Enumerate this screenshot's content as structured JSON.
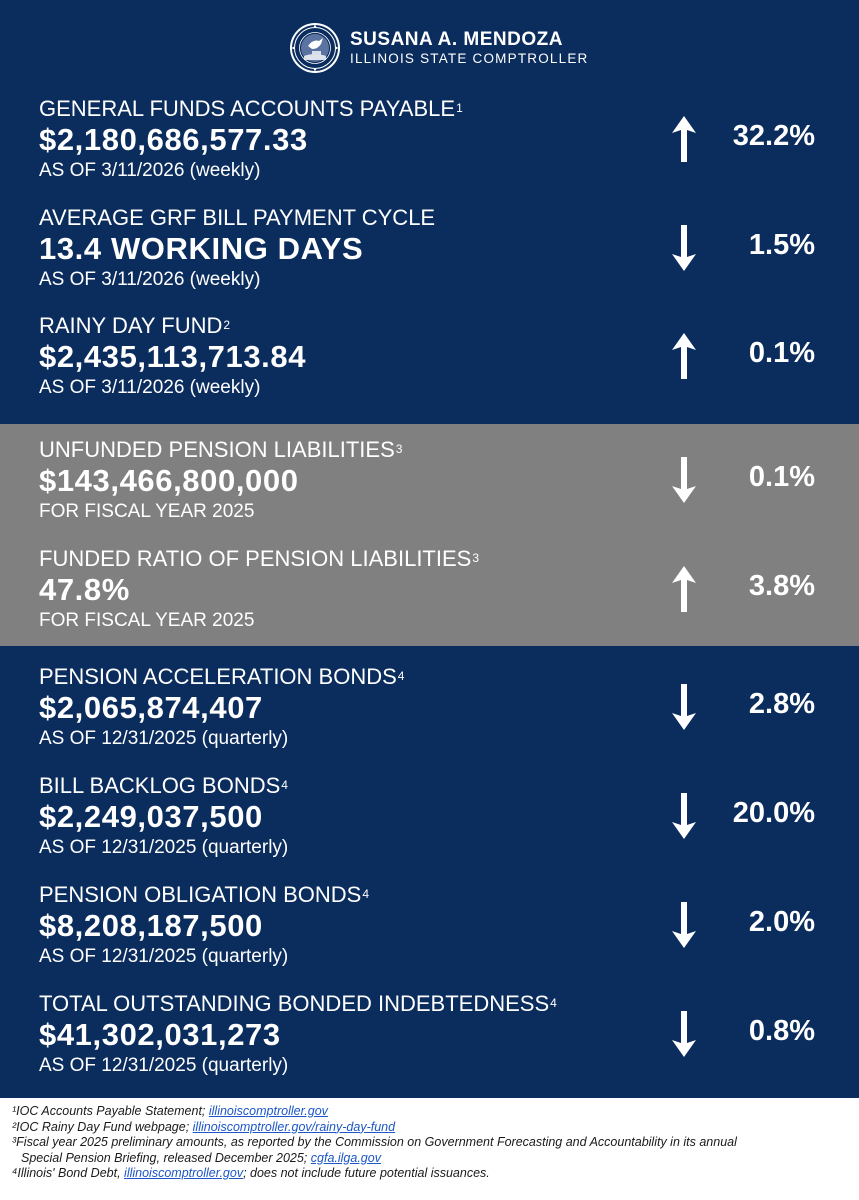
{
  "header": {
    "name": "SUSANA A. MENDOZA",
    "title": "ILLINOIS STATE COMPTROLLER"
  },
  "metrics": [
    {
      "label": "GENERAL FUNDS ACCOUNTS PAYABLE",
      "footnote": "1",
      "value": "$2,180,686,577.33",
      "as_of": "AS OF 3/11/2026 (weekly)",
      "direction": "up",
      "change": "32.2%"
    },
    {
      "label": "AVERAGE GRF BILL PAYMENT CYCLE",
      "footnote": "",
      "value": "13.4 WORKING DAYS",
      "as_of": "AS OF 3/11/2026 (weekly)",
      "direction": "down",
      "change": "1.5%"
    },
    {
      "label": "RAINY DAY FUND",
      "footnote": "2",
      "value": "$2,435,113,713.84",
      "as_of": "AS OF 3/11/2026 (weekly)",
      "direction": "up",
      "change": "0.1%"
    },
    {
      "label": "UNFUNDED PENSION LIABILITIES",
      "footnote": "3",
      "value": "$143,466,800,000",
      "as_of": "FOR FISCAL YEAR 2025",
      "direction": "down",
      "change": "0.1%"
    },
    {
      "label": "FUNDED RATIO OF PENSION LIABILITIES",
      "footnote": "3",
      "value": "47.8%",
      "as_of": "FOR FISCAL YEAR 2025",
      "direction": "up",
      "change": "3.8%"
    },
    {
      "label": "PENSION ACCELERATION BONDS",
      "footnote": "4",
      "value": "$2,065,874,407",
      "as_of": "AS OF 12/31/2025 (quarterly)",
      "direction": "down",
      "change": "2.8%"
    },
    {
      "label": "BILL BACKLOG BONDS",
      "footnote": "4",
      "value": "$2,249,037,500",
      "as_of": "AS OF 12/31/2025 (quarterly)",
      "direction": "down",
      "change": "20.0%"
    },
    {
      "label": "PENSION OBLIGATION BONDS",
      "footnote": "4",
      "value": "$8,208,187,500",
      "as_of": "AS OF 12/31/2025 (quarterly)",
      "direction": "down",
      "change": "2.0%"
    },
    {
      "label": "TOTAL OUTSTANDING BONDED INDEBTEDNESS",
      "footnote": "4",
      "value": "$41,302,031,273",
      "as_of": "AS OF 12/31/2025 (quarterly)",
      "direction": "down",
      "change": "0.8%"
    }
  ],
  "footnotes": {
    "f1": {
      "num": "¹",
      "text": "IOC Accounts Payable Statement; ",
      "link": "illinoiscomptroller.gov"
    },
    "f2": {
      "num": "²",
      "text": "IOC Rainy Day Fund webpage; ",
      "link": "illinoiscomptroller.gov/rainy-day-fund"
    },
    "f3": {
      "num": "³",
      "text": "Fiscal year 2025 preliminary amounts, as reported by the Commission on Government Forecasting and Accountability in its annual",
      "text2": "Special Pension Briefing, released December 2025; ",
      "link": "cgfa.ilga.gov"
    },
    "f4": {
      "num": "⁴",
      "text": "Illinois' Bond Debt, ",
      "link": "illinoiscomptroller.gov",
      "text_after": "; does not include future potential issuances."
    }
  },
  "colors": {
    "navy": "#0b2d5e",
    "gray": "#808080",
    "link": "#1c56c8"
  },
  "icons": {
    "arrow_up": "arrow-up-icon",
    "arrow_down": "arrow-down-icon",
    "seal": "state-seal-icon"
  }
}
